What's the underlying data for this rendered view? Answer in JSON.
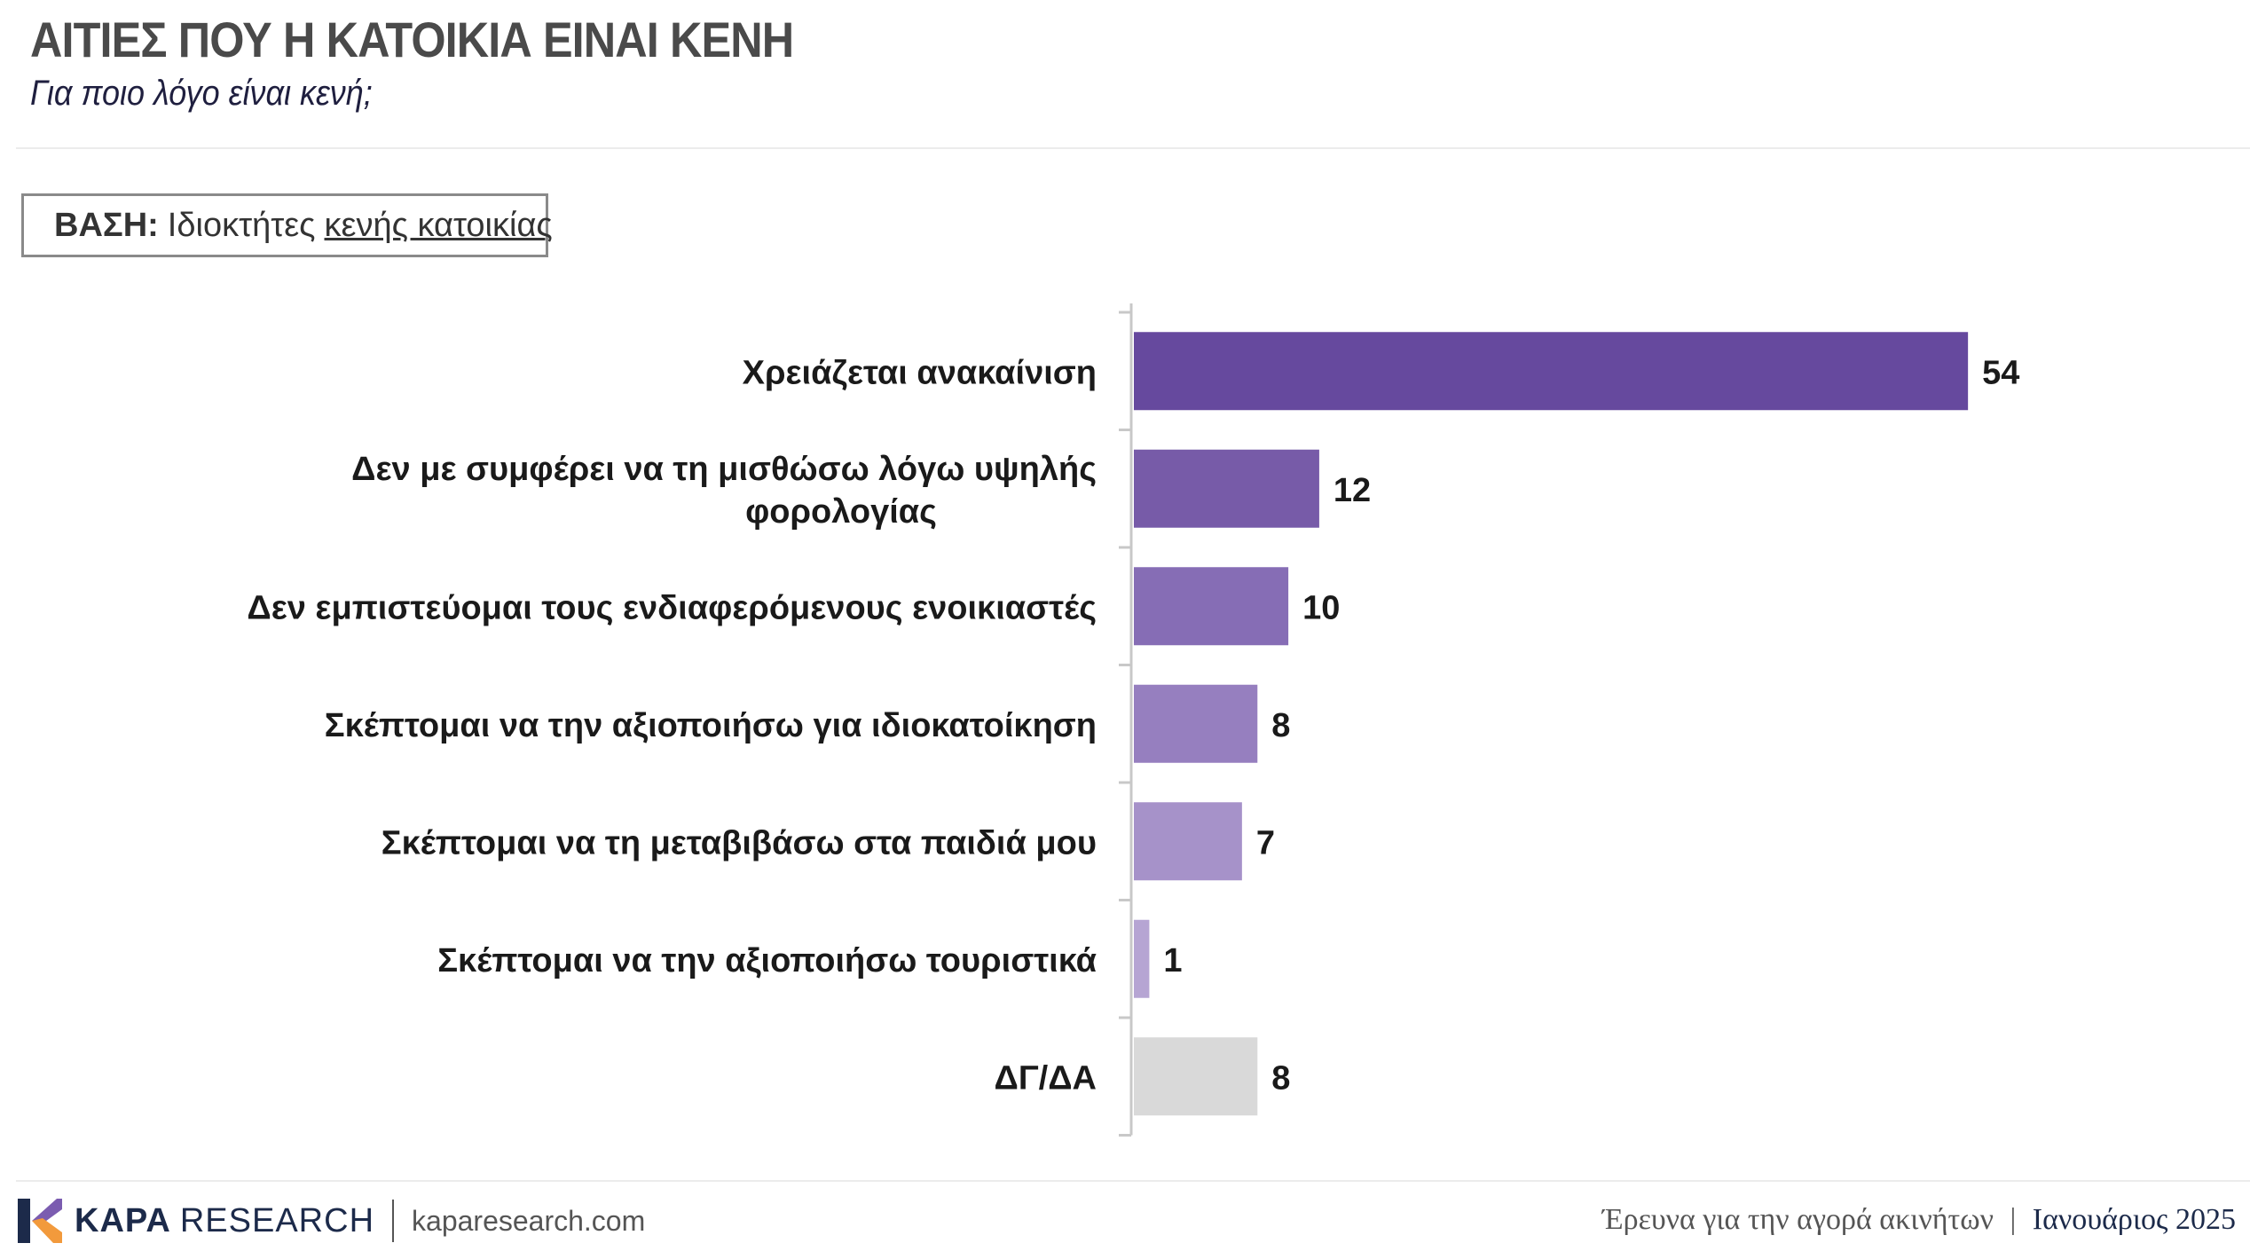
{
  "header": {
    "title": "ΑΙΤΙΕΣ ΠΟΥ Η ΚΑΤΟΙΚΙΑ ΕΙΝΑΙ ΚΕΝΗ",
    "subtitle": "Για ποιο λόγο είναι κενή;"
  },
  "base": {
    "label": "ΒΑΣΗ:",
    "text_plain": "Ιδιοκτήτες",
    "text_underlined": "κενής κατοικίας"
  },
  "chart_data": {
    "type": "bar",
    "orientation": "horizontal",
    "categories": [
      [
        "Χρειάζεται ανακαίνιση"
      ],
      [
        "Δεν με συμφέρει να τη μισθώσω λόγω υψηλής",
        "φορολογίας"
      ],
      [
        "Δεν εμπιστεύομαι τους ενδιαφερόμενους ενοικιαστές"
      ],
      [
        "Σκέπτομαι να την αξιοποιήσω για ιδιοκατοίκηση"
      ],
      [
        "Σκέπτομαι να τη μεταβιβάσω στα παιδιά μου"
      ],
      [
        "Σκέπτομαι να την αξιοποιήσω τουριστικά"
      ],
      [
        "ΔΓ/ΔΑ"
      ]
    ],
    "values": [
      54,
      12,
      10,
      8,
      7,
      1,
      8
    ],
    "colors": [
      "#66499e",
      "#775ba8",
      "#866db5",
      "#967fbf",
      "#a692c9",
      "#b6a5d3",
      "#d9d9d9"
    ],
    "xlim": [
      0,
      60
    ],
    "grid": false,
    "legend": "none"
  },
  "footer": {
    "brand_bold": "KAPA",
    "brand_light": "RESEARCH",
    "website": "kaparesearch.com",
    "survey": "Έρευνα για την αγορά ακινήτων",
    "separator": "|",
    "date": "Ιανουάριος 2025"
  }
}
